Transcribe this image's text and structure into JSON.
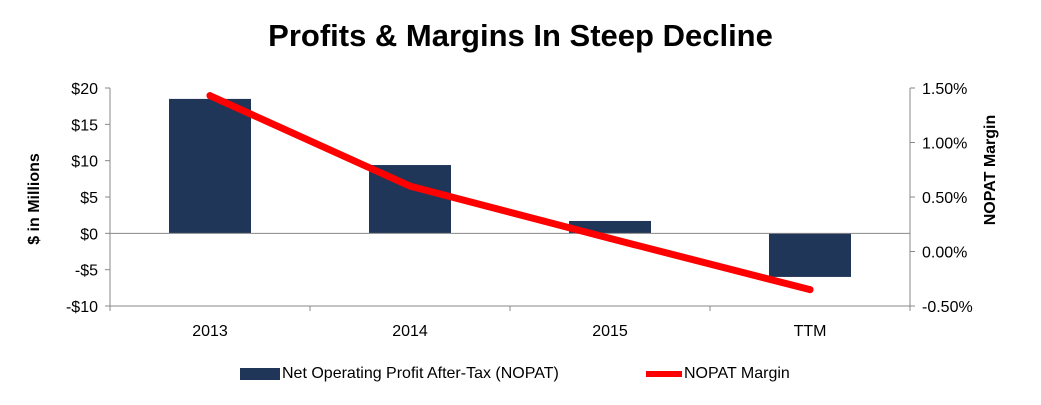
{
  "chart_data": {
    "type": "bar",
    "title": "Profits & Margins In Steep Decline",
    "categories": [
      "2013",
      "2014",
      "2015",
      "TTM"
    ],
    "series": [
      {
        "name": "Net Operating Profit After-Tax (NOPAT)",
        "type": "bar",
        "axis": "left",
        "color": "#1f3658",
        "values": [
          18.5,
          9.4,
          1.7,
          -6.0
        ]
      },
      {
        "name": "NOPAT Margin",
        "type": "line",
        "axis": "right",
        "color": "#ff0000",
        "values": [
          1.43,
          0.6,
          0.12,
          -0.35
        ]
      }
    ],
    "ylabel": "$ in Millions",
    "ylim": [
      -10,
      20
    ],
    "yticks": [
      20,
      15,
      10,
      5,
      0,
      -5,
      -10
    ],
    "ytick_labels": [
      "$20",
      "$15",
      "$10",
      "$5",
      "$0",
      "-$5",
      "-$10"
    ],
    "y2label": "NOPAT Margin",
    "y2lim": [
      -0.5,
      1.5
    ],
    "y2ticks": [
      1.5,
      1.0,
      0.5,
      0.0,
      -0.5
    ],
    "y2tick_labels": [
      "1.50%",
      "1.00%",
      "0.50%",
      "0.00%",
      "-0.50%"
    ],
    "grid": false,
    "legend_position": "bottom"
  }
}
